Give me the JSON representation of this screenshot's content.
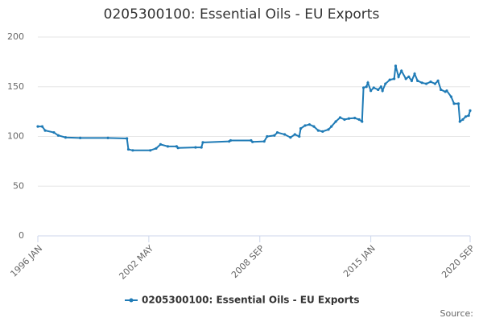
{
  "chart_data": {
    "type": "line",
    "title": "0205300100: Essential Oils - EU Exports",
    "source": "Source:",
    "x": [
      "1996-01",
      "1996-04",
      "1996-06",
      "1996-12",
      "1997-03",
      "1997-08",
      "1998-06",
      "2000-01",
      "2001-02",
      "2001-03",
      "2001-06",
      "2002-06",
      "2002-10",
      "2003-01",
      "2003-06",
      "2003-12",
      "2004-01",
      "2005-01",
      "2005-05",
      "2005-06",
      "2006-12",
      "2007-01",
      "2008-03",
      "2008-04",
      "2008-12",
      "2009-02",
      "2009-07",
      "2009-09",
      "2010-02",
      "2010-06",
      "2010-09",
      "2010-12",
      "2011-01",
      "2011-04",
      "2011-07",
      "2011-10",
      "2012-01",
      "2012-04",
      "2012-08",
      "2012-10",
      "2013-01",
      "2013-04",
      "2013-07",
      "2013-10",
      "2014-02",
      "2014-05",
      "2014-07",
      "2014-08",
      "2014-10",
      "2014-11",
      "2015-01",
      "2015-03",
      "2015-06",
      "2015-08",
      "2015-09",
      "2015-11",
      "2016-02",
      "2016-05",
      "2016-06",
      "2016-08",
      "2016-10",
      "2017-01",
      "2017-03",
      "2017-05",
      "2017-07",
      "2017-09",
      "2017-12",
      "2018-03",
      "2018-06",
      "2018-09",
      "2018-11",
      "2019-01",
      "2019-04",
      "2019-05",
      "2019-08",
      "2019-10",
      "2020-01",
      "2020-02",
      "2020-04",
      "2020-06",
      "2020-08",
      "2020-09"
    ],
    "series": [
      {
        "name": "0205300100: Essential Oils - EU Exports",
        "color": "#1f7bb6",
        "values": [
          110,
          110,
          106,
          104,
          101,
          99,
          98.5,
          98.5,
          98,
          87,
          86,
          86,
          88,
          92,
          90,
          90,
          88.5,
          89,
          89,
          94,
          95,
          96,
          96,
          94.5,
          95,
          100,
          101,
          104,
          102,
          99,
          102,
          100,
          108,
          111,
          112,
          110,
          106,
          105,
          107,
          110,
          115,
          119,
          117,
          118,
          118.5,
          117,
          115,
          149,
          150,
          154,
          146,
          149,
          147,
          150,
          146,
          153,
          157,
          158,
          171,
          160,
          166,
          158,
          160,
          156,
          163,
          156,
          154,
          153,
          155,
          153,
          156,
          147,
          145,
          146,
          140,
          133,
          133,
          115,
          117,
          120,
          121,
          126
        ]
      }
    ],
    "xlim": [
      "1996-01",
      "2020-09"
    ],
    "xticks": [
      {
        "value": "1996-01",
        "label": "1996 JAN"
      },
      {
        "value": "2002-05",
        "label": "2002 MAY"
      },
      {
        "value": "2008-09",
        "label": "2008 SEP"
      },
      {
        "value": "2015-01",
        "label": "2015 JAN"
      },
      {
        "value": "2020-09",
        "label": "2020 SEP"
      }
    ],
    "ylim": [
      0,
      200
    ],
    "yticks": [
      0,
      50,
      100,
      150,
      200
    ],
    "grid": true,
    "legend": "bottom"
  }
}
